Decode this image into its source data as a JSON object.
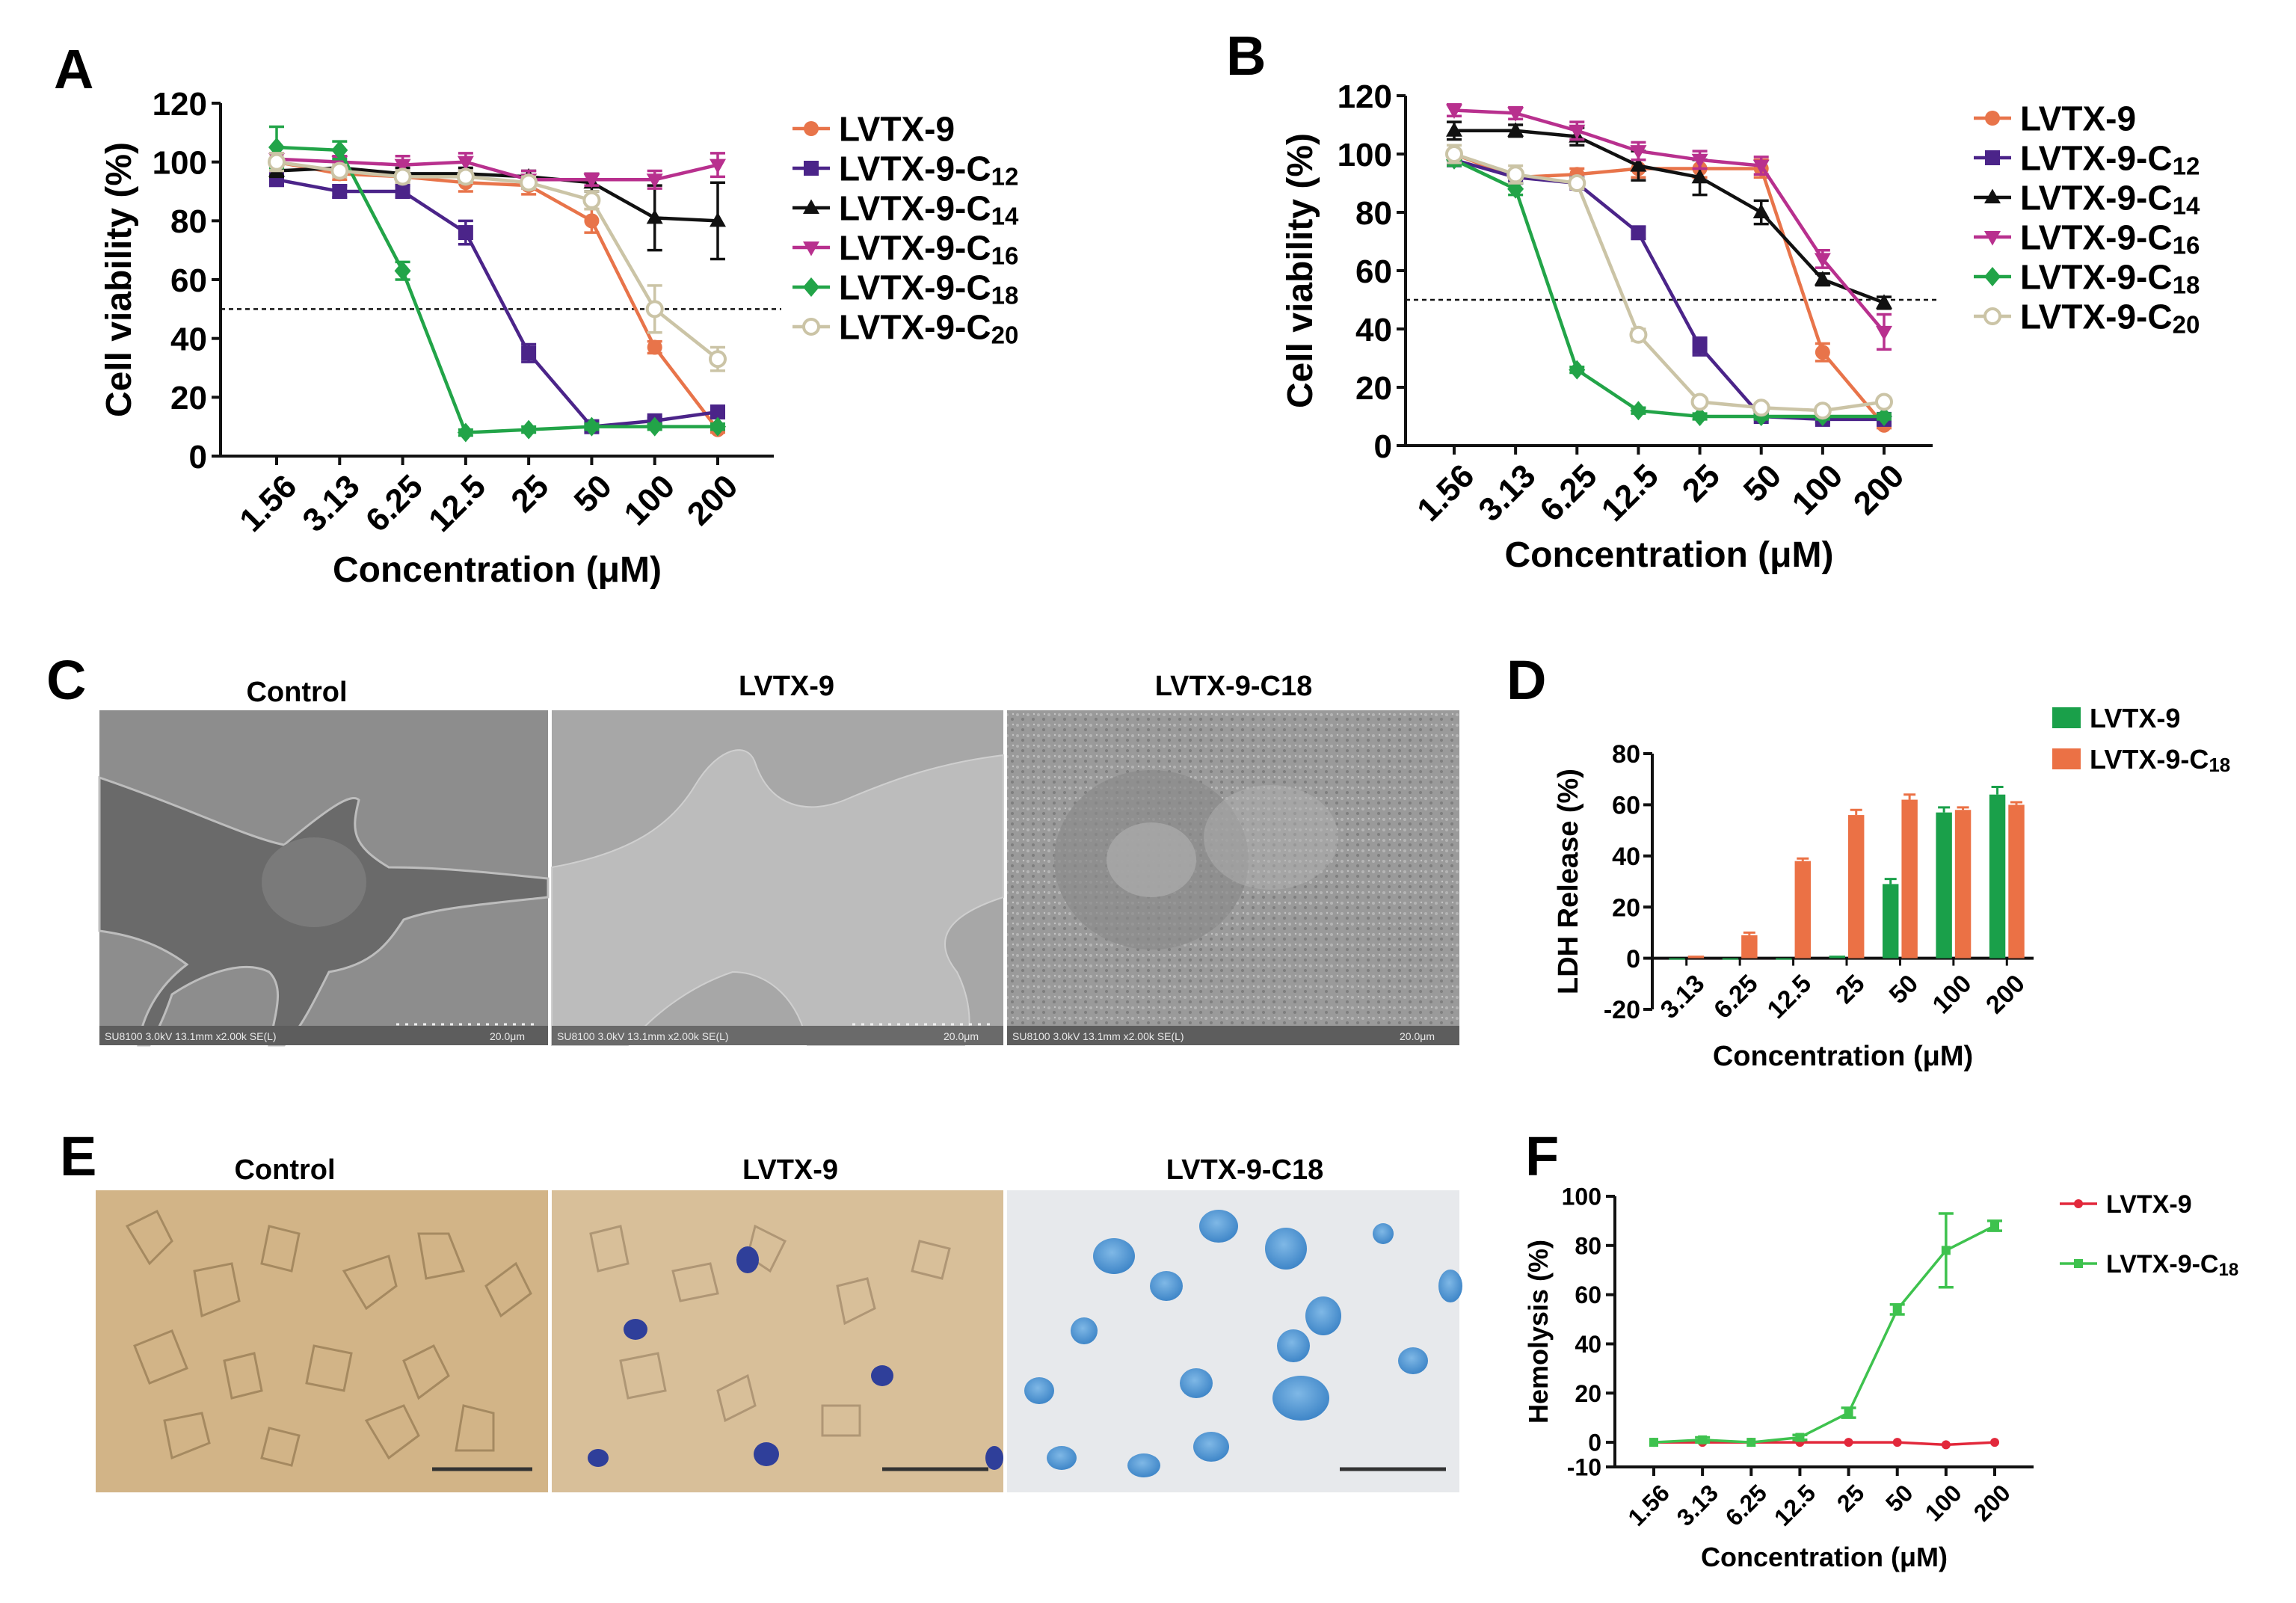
{
  "figure": {
    "panel_letters": [
      "A",
      "B",
      "C",
      "D",
      "E",
      "F"
    ]
  },
  "colors": {
    "LVTX-9": "#e8744a",
    "C12": "#4b2489",
    "C14": "#111111",
    "C16": "#b8308e",
    "C18": "#22a448",
    "C20": "#cbc4a6",
    "bar_green": "#1aa04a",
    "bar_orange": "#eb7145",
    "hemo_red": "#e2283b",
    "hemo_green": "#3ec24e"
  },
  "panel_c": {
    "letter": "C",
    "titles": [
      "Control",
      "LVTX-9",
      "LVTX-9-C18"
    ],
    "captions": [
      "SU8100 3.0kV 13.1mm x2.00k SE(L)",
      "SU8100 3.0kV 13.1mm x2.00k SE(L)",
      "SU8100 3.0kV 13.1mm x2.00k SE(L)"
    ],
    "scale_labels": [
      "20.0μm",
      "20.0μm",
      "20.0μm"
    ]
  },
  "panel_e": {
    "letter": "E",
    "titles": [
      "Control",
      "LVTX-9",
      "LVTX-9-C18"
    ]
  },
  "chart_data": [
    {
      "panel": "A",
      "type": "line",
      "ylabel": "Cell viability (%)",
      "xlabel": "Concentration (μM)",
      "categories": [
        "1.56",
        "3.13",
        "6.25",
        "12.5",
        "25",
        "50",
        "100",
        "200"
      ],
      "ylim": [
        0,
        120
      ],
      "yticks": [
        "0",
        "20",
        "40",
        "60",
        "80",
        "100",
        "120"
      ],
      "reference_line": 50,
      "legend_position": "right",
      "series": [
        {
          "name": "LVTX-9",
          "key": "LVTX-9",
          "marker": "circle",
          "values": [
            100,
            96,
            95,
            93,
            92,
            80,
            37,
            9
          ],
          "errors": [
            3,
            2,
            2,
            3,
            3,
            4,
            2,
            1
          ]
        },
        {
          "name": "LVTX-9-C12",
          "key": "C12",
          "marker": "square",
          "values": [
            94,
            90,
            90,
            76,
            35,
            10,
            12,
            15
          ],
          "errors": [
            2,
            2,
            2,
            4,
            3,
            1,
            1,
            1
          ]
        },
        {
          "name": "LVTX-9-C14",
          "key": "C14",
          "marker": "triangle",
          "values": [
            97,
            98,
            96,
            96,
            95,
            93,
            81,
            80
          ],
          "errors": [
            2,
            2,
            2,
            2,
            2,
            3,
            11,
            13
          ]
        },
        {
          "name": "LVTX-9-C16",
          "key": "C16",
          "marker": "triangle-down",
          "values": [
            101,
            100,
            99,
            100,
            94,
            94,
            94,
            99
          ],
          "errors": [
            2,
            2,
            3,
            3,
            3,
            2,
            3,
            4
          ]
        },
        {
          "name": "LVTX-9-C18",
          "key": "C18",
          "marker": "diamond",
          "values": [
            105,
            104,
            63,
            8,
            9,
            10,
            10,
            10
          ],
          "errors": [
            7,
            3,
            3,
            1,
            1,
            1,
            1,
            1
          ]
        },
        {
          "name": "LVTX-9-C20",
          "key": "C20",
          "marker": "circle-open",
          "values": [
            100,
            97,
            95,
            95,
            93,
            87,
            50,
            33
          ],
          "errors": [
            3,
            2,
            2,
            2,
            2,
            3,
            8,
            4
          ]
        }
      ],
      "legend": [
        {
          "base": "LVTX-9",
          "sub": ""
        },
        {
          "base": "LVTX-9-C",
          "sub": "12"
        },
        {
          "base": "LVTX-9-C",
          "sub": "14"
        },
        {
          "base": "LVTX-9-C",
          "sub": "16"
        },
        {
          "base": "LVTX-9-C",
          "sub": "18"
        },
        {
          "base": "LVTX-9-C",
          "sub": "20"
        }
      ]
    },
    {
      "panel": "B",
      "type": "line",
      "ylabel": "Cell viability (%)",
      "xlabel": "Concentration (μM)",
      "categories": [
        "1.56",
        "3.13",
        "6.25",
        "12.5",
        "25",
        "50",
        "100",
        "200"
      ],
      "ylim": [
        0,
        120
      ],
      "yticks": [
        "0",
        "20",
        "40",
        "60",
        "80",
        "100",
        "120"
      ],
      "reference_line": 50,
      "legend_position": "right",
      "series": [
        {
          "name": "LVTX-9",
          "key": "LVTX-9",
          "marker": "circle",
          "values": [
            100,
            92,
            93,
            95,
            95,
            95,
            32,
            7
          ],
          "errors": [
            3,
            2,
            2,
            3,
            3,
            3,
            3,
            1
          ]
        },
        {
          "name": "LVTX-9-C12",
          "key": "C12",
          "marker": "square",
          "values": [
            98,
            92,
            90,
            73,
            34,
            10,
            9,
            9
          ],
          "errors": [
            2,
            2,
            2,
            2,
            3,
            1,
            1,
            1
          ]
        },
        {
          "name": "LVTX-9-C14",
          "key": "C14",
          "marker": "triangle",
          "values": [
            108,
            108,
            106,
            96,
            92,
            80,
            57,
            49
          ],
          "errors": [
            3,
            2,
            3,
            5,
            6,
            4,
            2,
            2
          ]
        },
        {
          "name": "LVTX-9-C16",
          "key": "C16",
          "marker": "triangle-down",
          "values": [
            115,
            114,
            108,
            101,
            98,
            96,
            64,
            39
          ],
          "errors": [
            2,
            2,
            3,
            3,
            3,
            3,
            3,
            6
          ]
        },
        {
          "name": "LVTX-9-C18",
          "key": "C18",
          "marker": "diamond",
          "values": [
            98,
            88,
            26,
            12,
            10,
            10,
            10,
            10
          ],
          "errors": [
            2,
            2,
            1,
            1,
            1,
            1,
            1,
            1
          ]
        },
        {
          "name": "LVTX-9-C20",
          "key": "C20",
          "marker": "circle-open",
          "values": [
            100,
            93,
            90,
            38,
            15,
            13,
            12,
            15
          ],
          "errors": [
            3,
            3,
            2,
            2,
            1,
            1,
            1,
            1
          ]
        }
      ],
      "legend": [
        {
          "base": "LVTX-9",
          "sub": ""
        },
        {
          "base": "LVTX-9-C",
          "sub": "12"
        },
        {
          "base": "LVTX-9-C",
          "sub": "14"
        },
        {
          "base": "LVTX-9-C",
          "sub": "16"
        },
        {
          "base": "LVTX-9-C",
          "sub": "18"
        },
        {
          "base": "LVTX-9-C",
          "sub": "20"
        }
      ]
    },
    {
      "panel": "D",
      "type": "bar",
      "ylabel": "LDH Release (%)",
      "xlabel": "Concentration (μM)",
      "categories": [
        "3.13",
        "6.25",
        "12.5",
        "25",
        "50",
        "100",
        "200"
      ],
      "ylim": [
        -20,
        80
      ],
      "yticks": [
        "-20",
        "0",
        "20",
        "40",
        "60",
        "80"
      ],
      "legend_position": "top-right",
      "series": [
        {
          "name": "LVTX-9",
          "key": "bar_green",
          "values": [
            0,
            0,
            0,
            1,
            29,
            57,
            64
          ],
          "errors": [
            0,
            0,
            0,
            0,
            2,
            2,
            3
          ]
        },
        {
          "name": "LVTX-9-C18",
          "key": "bar_orange",
          "values": [
            1,
            9,
            38,
            56,
            62,
            58,
            60
          ],
          "errors": [
            0,
            1,
            1,
            2,
            2,
            1,
            1
          ]
        }
      ],
      "legend": [
        {
          "base": "LVTX-9",
          "sub": ""
        },
        {
          "base": "LVTX-9-C",
          "sub": "18"
        }
      ]
    },
    {
      "panel": "F",
      "type": "line",
      "ylabel": "Hemolysis (%)",
      "xlabel": "Concentration (μM)",
      "categories": [
        "1.56",
        "3.13",
        "6.25",
        "12.5",
        "25",
        "50",
        "100",
        "200"
      ],
      "ylim": [
        -10,
        100
      ],
      "yticks": [
        "-10",
        "0",
        "20",
        "40",
        "60",
        "80",
        "100"
      ],
      "legend_position": "top-right",
      "series": [
        {
          "name": "LVTX-9",
          "key": "hemo_red",
          "marker": "circle",
          "values": [
            0,
            0,
            0,
            0,
            0,
            0,
            -1,
            0
          ],
          "errors": [
            0,
            0,
            0,
            0,
            0,
            0,
            0,
            0
          ]
        },
        {
          "name": "LVTX-9-C18",
          "key": "hemo_green",
          "marker": "square",
          "values": [
            0,
            1,
            0,
            2,
            12,
            54,
            78,
            88
          ],
          "errors": [
            0,
            1,
            0,
            1,
            2,
            2,
            15,
            2
          ]
        }
      ],
      "legend": [
        {
          "base": "LVTX-9",
          "sub": ""
        },
        {
          "base": "LVTX-9-C",
          "sub": "18"
        }
      ]
    }
  ]
}
